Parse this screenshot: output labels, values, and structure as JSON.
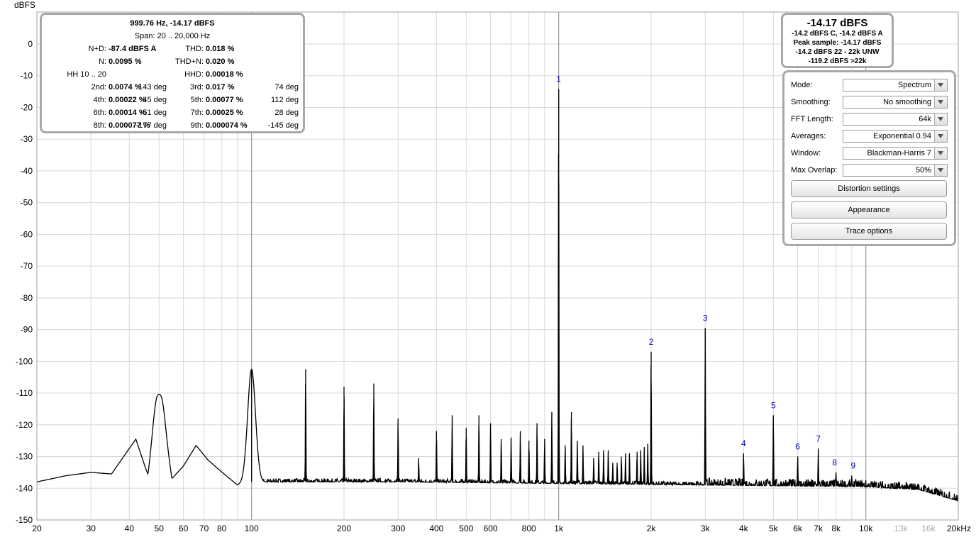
{
  "y_axis": {
    "unit": "dBFS",
    "ticks": [
      "0",
      "-10",
      "-20",
      "-30",
      "-40",
      "-50",
      "-60",
      "-70",
      "-80",
      "-90",
      "-100",
      "-110",
      "-120",
      "-130",
      "-140",
      "-150"
    ]
  },
  "x_axis": {
    "ticks": [
      {
        "f": 20,
        "label": "20",
        "dim": false
      },
      {
        "f": 30,
        "label": "30",
        "dim": false
      },
      {
        "f": 40,
        "label": "40",
        "dim": false
      },
      {
        "f": 50,
        "label": "50",
        "dim": false
      },
      {
        "f": 60,
        "label": "60",
        "dim": false
      },
      {
        "f": 70,
        "label": "70",
        "dim": false
      },
      {
        "f": 80,
        "label": "80",
        "dim": false
      },
      {
        "f": 100,
        "label": "100",
        "dim": false
      },
      {
        "f": 200,
        "label": "200",
        "dim": false
      },
      {
        "f": 300,
        "label": "300",
        "dim": false
      },
      {
        "f": 400,
        "label": "400",
        "dim": false
      },
      {
        "f": 500,
        "label": "500",
        "dim": false
      },
      {
        "f": 600,
        "label": "600",
        "dim": false
      },
      {
        "f": 800,
        "label": "800",
        "dim": false
      },
      {
        "f": 1000,
        "label": "1k",
        "dim": false
      },
      {
        "f": 2000,
        "label": "2k",
        "dim": false
      },
      {
        "f": 3000,
        "label": "3k",
        "dim": false
      },
      {
        "f": 4000,
        "label": "4k",
        "dim": false
      },
      {
        "f": 5000,
        "label": "5k",
        "dim": false
      },
      {
        "f": 6000,
        "label": "6k",
        "dim": false
      },
      {
        "f": 7000,
        "label": "7k",
        "dim": false
      },
      {
        "f": 8000,
        "label": "8k",
        "dim": false
      },
      {
        "f": 10000,
        "label": "10k",
        "dim": false
      },
      {
        "f": 13000,
        "label": "13k",
        "dim": true
      },
      {
        "f": 16000,
        "label": "16k",
        "dim": true
      },
      {
        "f": 20000,
        "label": "20kHz",
        "dim": false
      }
    ]
  },
  "stats": {
    "line1": "999.76 Hz, -14.17 dBFS",
    "line2": "Span: 20 .. 20,000 Hz",
    "rows": [
      {
        "l1": "N+D:",
        "v1": "-87.4 dBFS A",
        "d1": "",
        "l2": "THD:",
        "v2": "0.018 %",
        "d2": ""
      },
      {
        "l1": "N:",
        "v1": "0.0095 %",
        "d1": "",
        "l2": "THD+N:",
        "v2": "0.020 %",
        "d2": ""
      },
      {
        "l1": "HH 10 .. 20",
        "v1": "",
        "d1": "",
        "l2": "HHD:",
        "v2": "0.00018 %",
        "d2": ""
      },
      {
        "l1": "2nd:",
        "v1": "0.0074 %",
        "d1": "143 deg",
        "l2": "3rd:",
        "v2": "0.017 %",
        "d2": "74 deg"
      },
      {
        "l1": "4th:",
        "v1": "0.00022 %",
        "d1": "45 deg",
        "l2": "5th:",
        "v2": "0.00077 %",
        "d2": "112 deg"
      },
      {
        "l1": "6th:",
        "v1": "0.00014 %",
        "d1": "-51 deg",
        "l2": "7th:",
        "v2": "0.00025 %",
        "d2": "28 deg"
      },
      {
        "l1": "8th:",
        "v1": "0.000077 %",
        "d1": "-177 deg",
        "l2": "9th:",
        "v2": "0.000074 %",
        "d2": "-145 deg"
      }
    ]
  },
  "readout": {
    "main": "-14.17 dBFS",
    "lines": [
      "-14.2 dBFS C, -14.2 dBFS A",
      "Peak sample: -14.17 dBFS",
      "-14.2 dBFS 22 - 22k UNW",
      "-119.2 dBFS >22k"
    ]
  },
  "controls": {
    "mode": {
      "label": "Mode:",
      "value": "Spectrum"
    },
    "smoothing": {
      "label": "Smoothing:",
      "value": "No  smoothing"
    },
    "fft_length": {
      "label": "FFT Length:",
      "value": "64k"
    },
    "averages": {
      "label": "Averages:",
      "value": "Exponential 0.94"
    },
    "window": {
      "label": "Window:",
      "value": "Blackman-Harris 7"
    },
    "max_overlap": {
      "label": "Max Overlap:",
      "value": "50%"
    },
    "buttons": [
      "Distortion settings",
      "Appearance",
      "Trace options"
    ]
  },
  "chart_data": {
    "type": "line",
    "x_scale": "log",
    "xlim": [
      20,
      20000
    ],
    "ylim": [
      -150,
      0
    ],
    "grid": true,
    "ylabel": "dBFS",
    "harmonic_labels": [
      {
        "label": "1",
        "f": 1000,
        "db": -14.2
      },
      {
        "label": "2",
        "f": 2000,
        "db": -97
      },
      {
        "label": "3",
        "f": 3000,
        "db": -89.5
      },
      {
        "label": "4",
        "f": 4000,
        "db": -129
      },
      {
        "label": "5",
        "f": 5000,
        "db": -117
      },
      {
        "label": "6",
        "f": 6000,
        "db": -130
      },
      {
        "label": "7",
        "f": 7000,
        "db": -127.5
      },
      {
        "label": "8",
        "f": 8000,
        "db": -135
      },
      {
        "label": "9",
        "f": 9000,
        "db": -136
      }
    ],
    "spurs": [
      {
        "f": 50,
        "db": -110.5
      },
      {
        "f": 100,
        "db": -102.5
      },
      {
        "f": 150,
        "db": -102.5
      },
      {
        "f": 200,
        "db": -108
      },
      {
        "f": 250,
        "db": -107
      },
      {
        "f": 300,
        "db": -118
      },
      {
        "f": 350,
        "db": -130.5
      },
      {
        "f": 400,
        "db": -122
      },
      {
        "f": 450,
        "db": -117
      },
      {
        "f": 500,
        "db": -121
      },
      {
        "f": 550,
        "db": -117
      },
      {
        "f": 600,
        "db": -119.5
      },
      {
        "f": 650,
        "db": -124.5
      },
      {
        "f": 700,
        "db": -124
      },
      {
        "f": 750,
        "db": -122
      },
      {
        "f": 800,
        "db": -125
      },
      {
        "f": 850,
        "db": -119.5
      },
      {
        "f": 900,
        "db": -124.5
      },
      {
        "f": 950,
        "db": -116
      },
      {
        "f": 1050,
        "db": -126.5
      },
      {
        "f": 1100,
        "db": -116
      },
      {
        "f": 1150,
        "db": -125
      },
      {
        "f": 1200,
        "db": -126.5
      },
      {
        "f": 1300,
        "db": -130.5
      },
      {
        "f": 1350,
        "db": -128.5
      },
      {
        "f": 1400,
        "db": -128
      },
      {
        "f": 1450,
        "db": -128
      },
      {
        "f": 1500,
        "db": -132
      },
      {
        "f": 1550,
        "db": -132
      },
      {
        "f": 1600,
        "db": -130
      },
      {
        "f": 1650,
        "db": -129
      },
      {
        "f": 1700,
        "db": -129
      },
      {
        "f": 1800,
        "db": -128.5
      },
      {
        "f": 1850,
        "db": -128
      },
      {
        "f": 1900,
        "db": -127
      },
      {
        "f": 1950,
        "db": -126
      }
    ],
    "floor": [
      {
        "f": 20,
        "db": -138
      },
      {
        "f": 25,
        "db": -136
      },
      {
        "f": 30,
        "db": -135
      },
      {
        "f": 35,
        "db": -135.5
      },
      {
        "f": 42,
        "db": -124.5
      },
      {
        "f": 46,
        "db": -136
      },
      {
        "f": 50,
        "db": -110.5
      },
      {
        "f": 55,
        "db": -137
      },
      {
        "f": 60,
        "db": -133
      },
      {
        "f": 66,
        "db": -126.5
      },
      {
        "f": 72,
        "db": -131
      },
      {
        "f": 78,
        "db": -134
      },
      {
        "f": 85,
        "db": -137
      },
      {
        "f": 90,
        "db": -139
      },
      {
        "f": 95,
        "db": -138
      },
      {
        "f": 300,
        "db": -138
      },
      {
        "f": 1000,
        "db": -138.5
      },
      {
        "f": 3000,
        "db": -139
      },
      {
        "f": 10000,
        "db": -139.5
      },
      {
        "f": 15000,
        "db": -140.5
      },
      {
        "f": 20000,
        "db": -144
      }
    ]
  }
}
